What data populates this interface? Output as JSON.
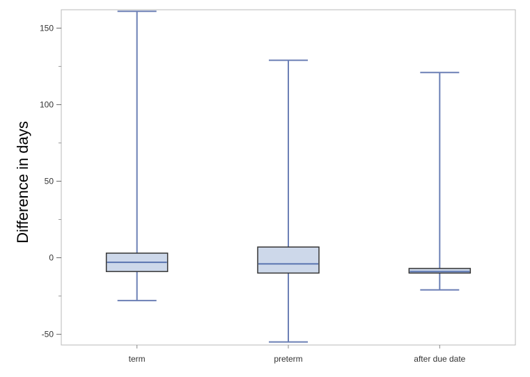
{
  "chart_data": {
    "type": "box",
    "title": "",
    "xlabel": "",
    "ylabel": "Difference in days",
    "ylim": [
      -57,
      162
    ],
    "yticks": [
      -50,
      0,
      50,
      100,
      150
    ],
    "ytick_labels": [
      "-50",
      "0",
      "50",
      "100",
      "150"
    ],
    "grid": false,
    "legend": "none",
    "categories": [
      "term",
      "preterm",
      "after due date"
    ],
    "boxes": [
      {
        "category": "term",
        "min": -28,
        "q1": -9,
        "median": -3,
        "q3": 3,
        "max": 161
      },
      {
        "category": "preterm",
        "min": -55,
        "q1": -10,
        "median": -4,
        "q3": 7,
        "max": 129
      },
      {
        "category": "after due date",
        "min": -21,
        "q1": -10,
        "median": -9,
        "q3": -7,
        "max": 121
      }
    ],
    "colors": {
      "box_fill": "#cdd8ea",
      "box_outline": "#333333",
      "whisker": "#6b7fb5",
      "median": "#5873b0",
      "frame": "#b8b8b8",
      "axis_text": "#333333"
    }
  }
}
